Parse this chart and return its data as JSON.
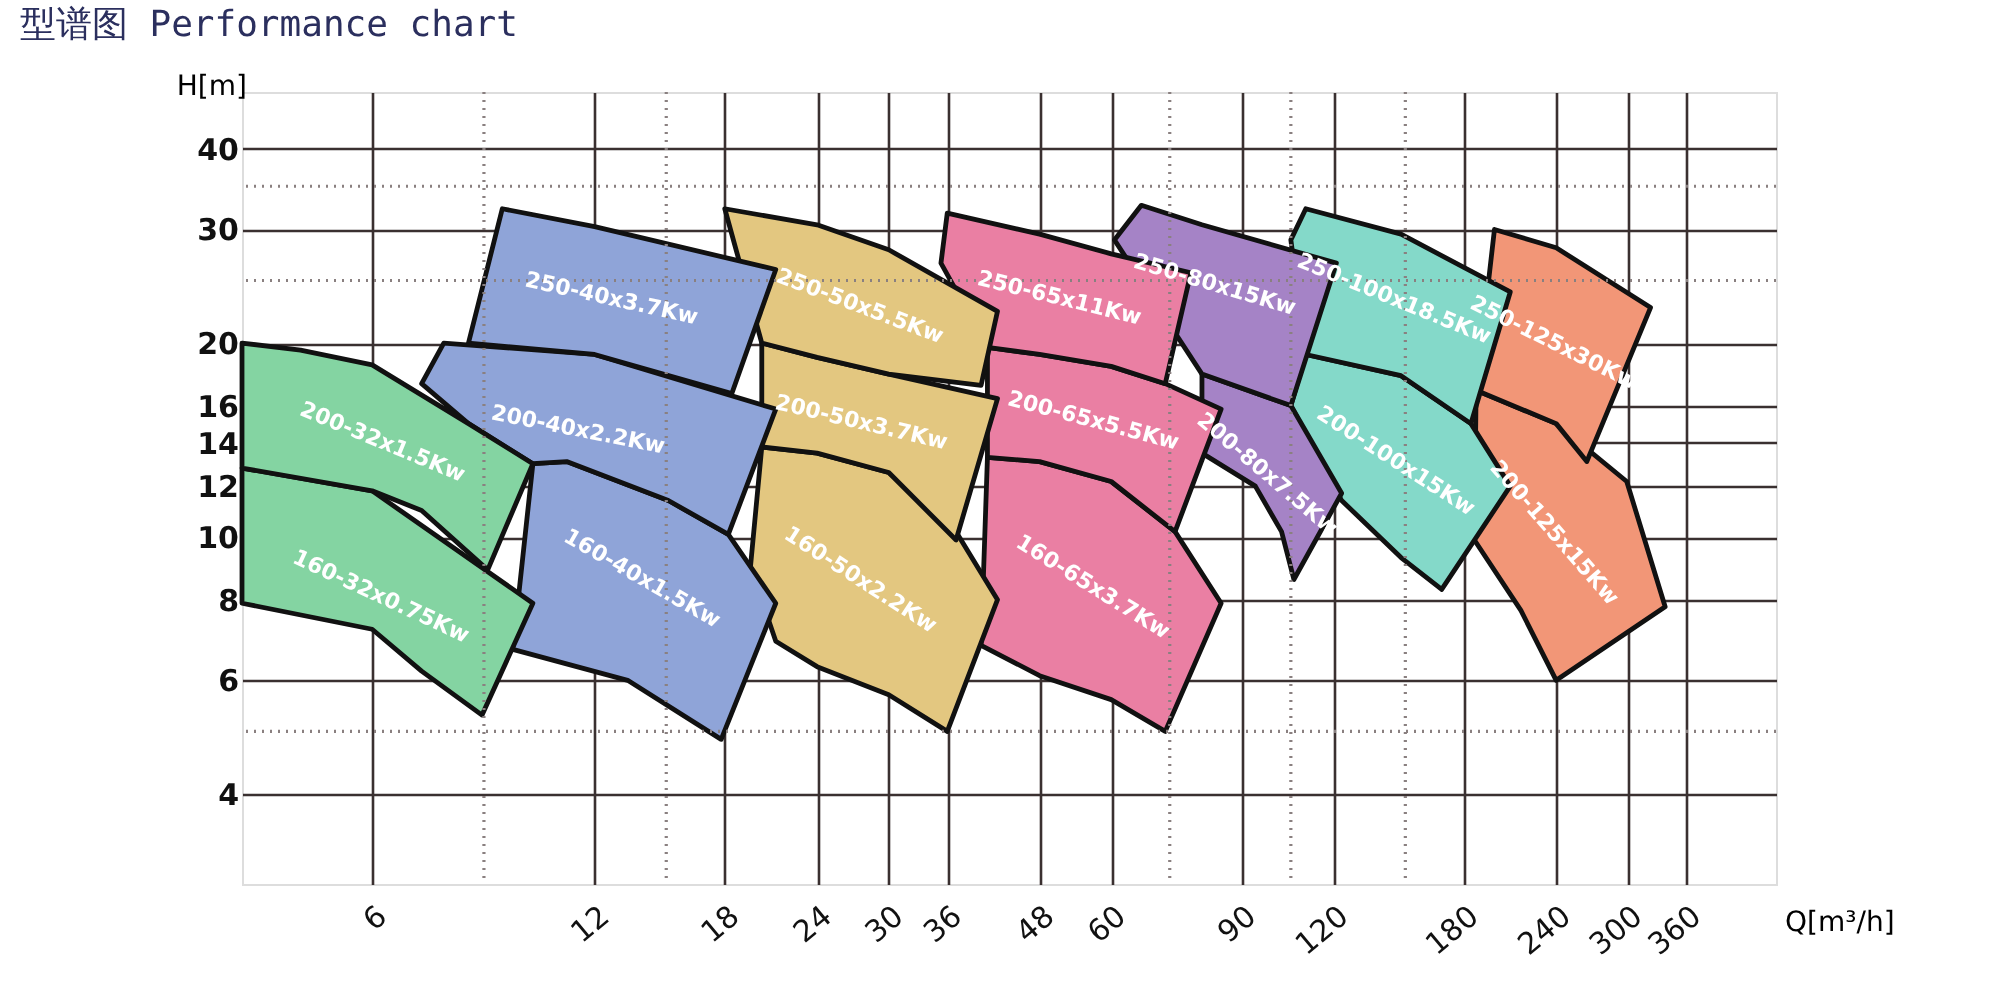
{
  "chart_data": {
    "type": "area",
    "title": "型谱图 Performance chart",
    "xlabel": "Q[m³/h]",
    "ylabel": "H[m]",
    "log": "xy",
    "grid": true,
    "marker": "none",
    "line_style": "solid",
    "xlim": [
      4,
      476
    ],
    "ylim": [
      2.9,
      49
    ],
    "xticks": [
      6,
      12,
      18,
      24,
      30,
      36,
      48,
      60,
      90,
      120,
      180,
      240,
      300,
      360
    ],
    "yticks": [
      4,
      6,
      8,
      10,
      12,
      14,
      16,
      20,
      30,
      40
    ],
    "ref_lines": [
      {
        "axis": "x",
        "value": 8.5,
        "line_style": "dotted"
      },
      {
        "axis": "x",
        "value": 15,
        "line_style": "dotted"
      },
      {
        "axis": "x",
        "value": 72,
        "line_style": "dotted"
      },
      {
        "axis": "x",
        "value": 105,
        "line_style": "dotted"
      },
      {
        "axis": "x",
        "value": 150,
        "line_style": "dotted"
      },
      {
        "axis": "y",
        "value": 35,
        "line_style": "dotted"
      },
      {
        "axis": "y",
        "value": 25,
        "line_style": "dotted"
      },
      {
        "axis": "y",
        "value": 5,
        "line_style": "dotted"
      }
    ],
    "series": [
      {
        "name": "200-125x15Kw",
        "color": "#f29677",
        "x": [
          187,
          240,
          299,
          337,
          240,
          215,
          186
        ],
        "values": [
          16.9,
          15.0,
          12.2,
          7.8,
          6.0,
          7.7,
          9.9
        ]
      },
      {
        "name": "250-125x30Kw",
        "color": "#f29677",
        "x": [
          198,
          240,
          322,
          264,
          240,
          187
        ],
        "values": [
          30,
          28.1,
          22.7,
          13.1,
          15.0,
          16.9
        ]
      },
      {
        "name": "200-100x15Kw",
        "color": "#84d9c9",
        "x": [
          110,
          148,
          184,
          208,
          168,
          148,
          123,
          105
        ],
        "values": [
          19.2,
          17.8,
          15.0,
          12.0,
          8.3,
          9.3,
          11.4,
          16.0
        ]
      },
      {
        "name": "250-100x18.5Kw",
        "color": "#84d9c9",
        "x": [
          110,
          148,
          180,
          208,
          184,
          148,
          110,
          105
        ],
        "values": [
          32.3,
          29.5,
          26.2,
          24.0,
          15.0,
          17.8,
          19.2,
          28.9
        ]
      },
      {
        "name": "200-80x7.5Kw",
        "color": "#a583c6",
        "x": [
          79.6,
          105,
          123,
          106,
          102,
          94,
          79.6
        ],
        "values": [
          17.9,
          16.0,
          11.7,
          8.6,
          10.2,
          12.0,
          13.5
        ]
      },
      {
        "name": "250-80x15Kw",
        "color": "#a583c6",
        "x": [
          65.9,
          79.6,
          121,
          105,
          79.6,
          60.6
        ],
        "values": [
          32.7,
          30.5,
          26.6,
          16.0,
          17.9,
          28.9
        ]
      },
      {
        "name": "160-65x3.7Kw",
        "color": "#ea7fa3",
        "x": [
          40.8,
          48,
          60,
          73.2,
          84.5,
          71,
          60,
          48,
          40
        ],
        "values": [
          13.3,
          13.1,
          12.2,
          10.2,
          7.9,
          5.0,
          5.6,
          6.1,
          6.8
        ]
      },
      {
        "name": "200-65x5.5Kw",
        "color": "#ea7fa3",
        "x": [
          40.8,
          48,
          60,
          71,
          84.5,
          73.2,
          60,
          48,
          40.8
        ],
        "values": [
          19.7,
          19.2,
          18.4,
          17.3,
          15.8,
          10.2,
          12.2,
          13.1,
          13.3
        ]
      },
      {
        "name": "250-65x11Kw",
        "color": "#ea7fa3",
        "x": [
          36,
          48,
          60,
          76.9,
          71,
          60,
          48,
          40.8,
          35.3
        ],
        "values": [
          31.8,
          29.5,
          27.5,
          25.7,
          17.3,
          18.4,
          19.2,
          19.7,
          26.6
        ]
      },
      {
        "name": "160-50x2.2Kw",
        "color": "#e3c780",
        "x": [
          20.2,
          24,
          30,
          37,
          42.1,
          36,
          30,
          24,
          21.1,
          19.5
        ],
        "values": [
          13.8,
          13.5,
          12.6,
          10.2,
          8.0,
          5.0,
          5.7,
          6.3,
          6.9,
          9
        ]
      },
      {
        "name": "200-50x3.7Kw",
        "color": "#e3c780",
        "x": [
          20.2,
          24,
          30,
          42.1,
          37,
          30,
          24,
          20.2
        ],
        "values": [
          20,
          19.0,
          17.9,
          16.4,
          9.9,
          12.6,
          13.5,
          13.8
        ]
      },
      {
        "name": "250-50x5.5Kw",
        "color": "#e3c780",
        "x": [
          18,
          24,
          30,
          42.1,
          40,
          30,
          24,
          20.2
        ],
        "values": [
          32.3,
          30.5,
          27.9,
          22.4,
          17.2,
          17.9,
          19.0,
          20.0
        ]
      },
      {
        "name": "160-40x1.5Kw",
        "color": "#8fa4d8",
        "x": [
          9.9,
          11.0,
          15.1,
          18.2,
          21.1,
          17.8,
          13.3,
          9.3
        ],
        "values": [
          13.0,
          13.1,
          11.4,
          10.1,
          7.9,
          4.86,
          6.0,
          6.7
        ]
      },
      {
        "name": "200-40x2.2Kw",
        "color": "#8fa4d8",
        "x": [
          7.5,
          12,
          21.1,
          18.2,
          15.1,
          11.0,
          9.9,
          8.1,
          7.0
        ],
        "values": [
          20,
          19.2,
          15.8,
          10.1,
          11.4,
          13.1,
          13.0,
          15,
          17.3
        ]
      },
      {
        "name": "250-40x3.7Kw",
        "color": "#8fa4d8",
        "x": [
          9.0,
          12,
          21.1,
          18.4,
          12,
          8.1
        ],
        "values": [
          32.3,
          30.3,
          26,
          16.7,
          19.2,
          20
        ]
      },
      {
        "name": "160-32x0.75Kw",
        "color": "#84d4a2",
        "x": [
          4,
          6,
          9.9,
          8.45,
          7.0,
          6,
          4
        ],
        "values": [
          12.8,
          11.8,
          7.9,
          5.3,
          6.2,
          7.2,
          7.9
        ]
      },
      {
        "name": "200-32x1.5Kw",
        "color": "#84d4a2",
        "x": [
          4,
          4.8,
          6,
          8.1,
          9.9,
          8.6,
          7.0,
          6,
          4
        ],
        "values": [
          20,
          19.5,
          18.5,
          15,
          13.0,
          8.9,
          11.0,
          11.8,
          12.8
        ]
      }
    ]
  }
}
